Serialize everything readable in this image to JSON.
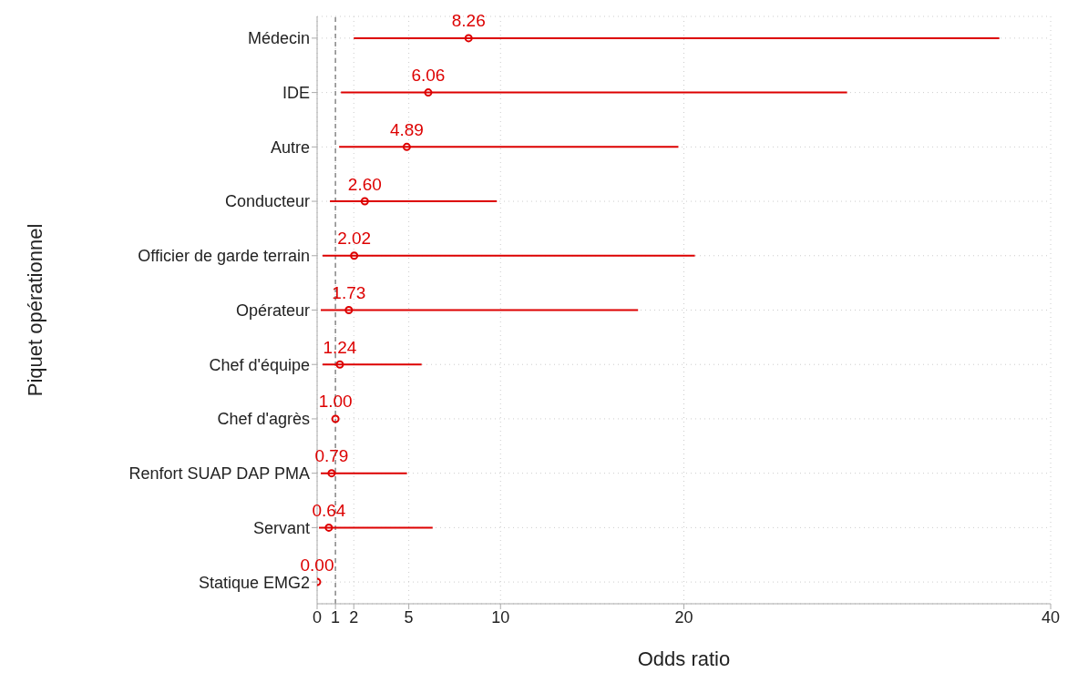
{
  "chart_data": {
    "type": "scatter",
    "xlabel": "Odds ratio",
    "ylabel": "Piquet opérationnel",
    "categories": [
      "Médecin",
      "IDE",
      "Autre",
      "Conducteur",
      "Officier de garde terrain",
      "Opérateur",
      "Chef d'équipe",
      "Chef d'agrès",
      "Renfort SUAP DAP PMA",
      "Servant",
      "Statique EMG2"
    ],
    "orientation": "horizontal",
    "values": [
      8.26,
      6.06,
      4.89,
      2.6,
      2.02,
      1.73,
      1.24,
      1.0,
      0.79,
      0.64,
      0.0
    ],
    "errors": [
      [
        2.0,
        37.2
      ],
      [
        1.3,
        28.9
      ],
      [
        1.2,
        19.7
      ],
      [
        0.7,
        9.8
      ],
      [
        0.3,
        20.6
      ],
      [
        0.2,
        17.5
      ],
      [
        0.3,
        5.7
      ],
      null,
      [
        0.2,
        4.9
      ],
      [
        0.1,
        6.3
      ],
      null
    ],
    "value_labels": [
      "8.26",
      "6.06",
      "4.89",
      "2.60",
      "2.02",
      "1.73",
      "1.24",
      "1.00",
      "0.79",
      "0.64",
      "0.00"
    ],
    "color": "#dd0000",
    "marker": "circle",
    "grid": true,
    "xlim": [
      0,
      40
    ],
    "xticks": [
      0,
      1,
      2,
      5,
      10,
      20,
      40
    ],
    "ref_lines": [
      {
        "axis": "x",
        "value": 1,
        "label": null,
        "color": "#888888",
        "line_style": "dashed"
      }
    ]
  }
}
